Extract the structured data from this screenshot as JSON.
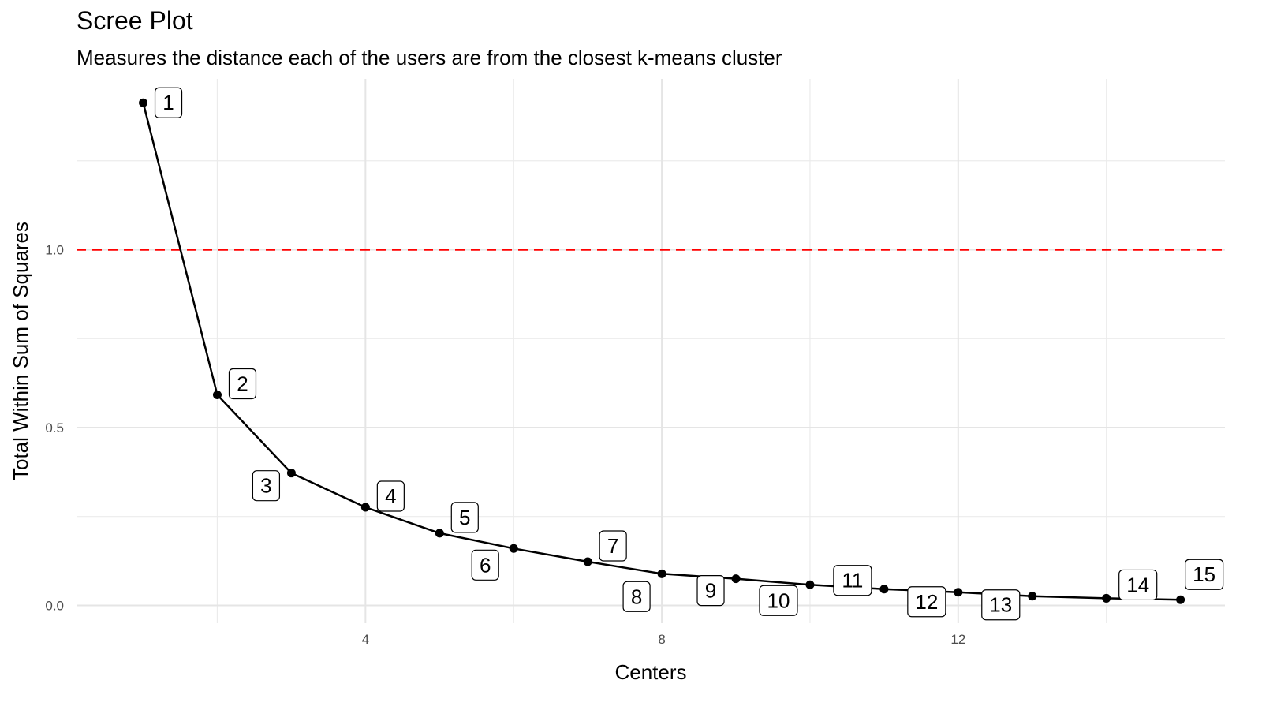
{
  "chart_data": {
    "type": "line",
    "title": "Scree Plot",
    "subtitle": "Measures the distance each of the users are from the closest k-means cluster",
    "xlabel": "Centers",
    "ylabel": "Total Within Sum of Squares",
    "x": [
      1,
      2,
      3,
      4,
      5,
      6,
      7,
      8,
      9,
      10,
      11,
      12,
      13,
      14,
      15
    ],
    "y": [
      1.413,
      0.592,
      0.372,
      0.276,
      0.203,
      0.16,
      0.123,
      0.089,
      0.075,
      0.058,
      0.046,
      0.037,
      0.026,
      0.02,
      0.016
    ],
    "point_labels": [
      "1",
      "2",
      "3",
      "4",
      "5",
      "6",
      "7",
      "8",
      "9",
      "10",
      "11",
      "12",
      "13",
      "14",
      "15"
    ],
    "x_ticks": [
      4,
      8,
      12
    ],
    "x_tick_labels": [
      "4",
      "8",
      "12"
    ],
    "y_ticks": [
      0.0,
      0.5,
      1.0
    ],
    "y_tick_labels": [
      "0.0",
      "0.5",
      "1.0"
    ],
    "xlim": [
      0.1,
      15.6
    ],
    "ylim": [
      -0.05,
      1.48
    ],
    "reference_line": {
      "y": 1.0,
      "color": "#ff0000",
      "style": "dashed"
    },
    "line_color": "#000000",
    "grid": true,
    "legend": "none"
  }
}
